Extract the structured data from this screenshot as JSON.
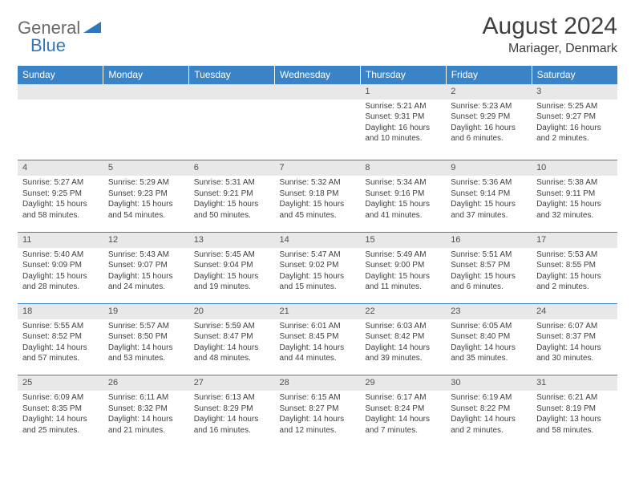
{
  "logo": {
    "text1": "General",
    "text2": "Blue"
  },
  "title": "August 2024",
  "location": "Mariager, Denmark",
  "colors": {
    "header_bg": "#3a83c6",
    "header_text": "#ffffff",
    "daynum_bg": "#e8e8e9",
    "text": "#404040",
    "logo_gray": "#6a6a6a",
    "logo_blue": "#2f77bc"
  },
  "day_headers": [
    "Sunday",
    "Monday",
    "Tuesday",
    "Wednesday",
    "Thursday",
    "Friday",
    "Saturday"
  ],
  "weeks": [
    [
      {
        "n": "",
        "sr": "",
        "ss": "",
        "dl": ""
      },
      {
        "n": "",
        "sr": "",
        "ss": "",
        "dl": ""
      },
      {
        "n": "",
        "sr": "",
        "ss": "",
        "dl": ""
      },
      {
        "n": "",
        "sr": "",
        "ss": "",
        "dl": ""
      },
      {
        "n": "1",
        "sr": "Sunrise: 5:21 AM",
        "ss": "Sunset: 9:31 PM",
        "dl": "Daylight: 16 hours and 10 minutes."
      },
      {
        "n": "2",
        "sr": "Sunrise: 5:23 AM",
        "ss": "Sunset: 9:29 PM",
        "dl": "Daylight: 16 hours and 6 minutes."
      },
      {
        "n": "3",
        "sr": "Sunrise: 5:25 AM",
        "ss": "Sunset: 9:27 PM",
        "dl": "Daylight: 16 hours and 2 minutes."
      }
    ],
    [
      {
        "n": "4",
        "sr": "Sunrise: 5:27 AM",
        "ss": "Sunset: 9:25 PM",
        "dl": "Daylight: 15 hours and 58 minutes."
      },
      {
        "n": "5",
        "sr": "Sunrise: 5:29 AM",
        "ss": "Sunset: 9:23 PM",
        "dl": "Daylight: 15 hours and 54 minutes."
      },
      {
        "n": "6",
        "sr": "Sunrise: 5:31 AM",
        "ss": "Sunset: 9:21 PM",
        "dl": "Daylight: 15 hours and 50 minutes."
      },
      {
        "n": "7",
        "sr": "Sunrise: 5:32 AM",
        "ss": "Sunset: 9:18 PM",
        "dl": "Daylight: 15 hours and 45 minutes."
      },
      {
        "n": "8",
        "sr": "Sunrise: 5:34 AM",
        "ss": "Sunset: 9:16 PM",
        "dl": "Daylight: 15 hours and 41 minutes."
      },
      {
        "n": "9",
        "sr": "Sunrise: 5:36 AM",
        "ss": "Sunset: 9:14 PM",
        "dl": "Daylight: 15 hours and 37 minutes."
      },
      {
        "n": "10",
        "sr": "Sunrise: 5:38 AM",
        "ss": "Sunset: 9:11 PM",
        "dl": "Daylight: 15 hours and 32 minutes."
      }
    ],
    [
      {
        "n": "11",
        "sr": "Sunrise: 5:40 AM",
        "ss": "Sunset: 9:09 PM",
        "dl": "Daylight: 15 hours and 28 minutes."
      },
      {
        "n": "12",
        "sr": "Sunrise: 5:43 AM",
        "ss": "Sunset: 9:07 PM",
        "dl": "Daylight: 15 hours and 24 minutes."
      },
      {
        "n": "13",
        "sr": "Sunrise: 5:45 AM",
        "ss": "Sunset: 9:04 PM",
        "dl": "Daylight: 15 hours and 19 minutes."
      },
      {
        "n": "14",
        "sr": "Sunrise: 5:47 AM",
        "ss": "Sunset: 9:02 PM",
        "dl": "Daylight: 15 hours and 15 minutes."
      },
      {
        "n": "15",
        "sr": "Sunrise: 5:49 AM",
        "ss": "Sunset: 9:00 PM",
        "dl": "Daylight: 15 hours and 11 minutes."
      },
      {
        "n": "16",
        "sr": "Sunrise: 5:51 AM",
        "ss": "Sunset: 8:57 PM",
        "dl": "Daylight: 15 hours and 6 minutes."
      },
      {
        "n": "17",
        "sr": "Sunrise: 5:53 AM",
        "ss": "Sunset: 8:55 PM",
        "dl": "Daylight: 15 hours and 2 minutes."
      }
    ],
    [
      {
        "n": "18",
        "sr": "Sunrise: 5:55 AM",
        "ss": "Sunset: 8:52 PM",
        "dl": "Daylight: 14 hours and 57 minutes."
      },
      {
        "n": "19",
        "sr": "Sunrise: 5:57 AM",
        "ss": "Sunset: 8:50 PM",
        "dl": "Daylight: 14 hours and 53 minutes."
      },
      {
        "n": "20",
        "sr": "Sunrise: 5:59 AM",
        "ss": "Sunset: 8:47 PM",
        "dl": "Daylight: 14 hours and 48 minutes."
      },
      {
        "n": "21",
        "sr": "Sunrise: 6:01 AM",
        "ss": "Sunset: 8:45 PM",
        "dl": "Daylight: 14 hours and 44 minutes."
      },
      {
        "n": "22",
        "sr": "Sunrise: 6:03 AM",
        "ss": "Sunset: 8:42 PM",
        "dl": "Daylight: 14 hours and 39 minutes."
      },
      {
        "n": "23",
        "sr": "Sunrise: 6:05 AM",
        "ss": "Sunset: 8:40 PM",
        "dl": "Daylight: 14 hours and 35 minutes."
      },
      {
        "n": "24",
        "sr": "Sunrise: 6:07 AM",
        "ss": "Sunset: 8:37 PM",
        "dl": "Daylight: 14 hours and 30 minutes."
      }
    ],
    [
      {
        "n": "25",
        "sr": "Sunrise: 6:09 AM",
        "ss": "Sunset: 8:35 PM",
        "dl": "Daylight: 14 hours and 25 minutes."
      },
      {
        "n": "26",
        "sr": "Sunrise: 6:11 AM",
        "ss": "Sunset: 8:32 PM",
        "dl": "Daylight: 14 hours and 21 minutes."
      },
      {
        "n": "27",
        "sr": "Sunrise: 6:13 AM",
        "ss": "Sunset: 8:29 PM",
        "dl": "Daylight: 14 hours and 16 minutes."
      },
      {
        "n": "28",
        "sr": "Sunrise: 6:15 AM",
        "ss": "Sunset: 8:27 PM",
        "dl": "Daylight: 14 hours and 12 minutes."
      },
      {
        "n": "29",
        "sr": "Sunrise: 6:17 AM",
        "ss": "Sunset: 8:24 PM",
        "dl": "Daylight: 14 hours and 7 minutes."
      },
      {
        "n": "30",
        "sr": "Sunrise: 6:19 AM",
        "ss": "Sunset: 8:22 PM",
        "dl": "Daylight: 14 hours and 2 minutes."
      },
      {
        "n": "31",
        "sr": "Sunrise: 6:21 AM",
        "ss": "Sunset: 8:19 PM",
        "dl": "Daylight: 13 hours and 58 minutes."
      }
    ]
  ]
}
